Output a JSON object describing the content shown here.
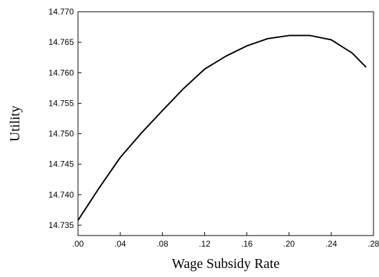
{
  "chart_data": {
    "type": "line",
    "x_label": "Wage Subsidy Rate",
    "y_label": "Utility",
    "x": [
      0,
      0.02,
      0.04,
      0.06,
      0.08,
      0.1,
      0.12,
      0.14,
      0.16,
      0.18,
      0.2,
      0.22,
      0.24,
      0.26,
      0.273
    ],
    "series": [
      {
        "name": "Utility",
        "color": "#000000",
        "values": [
          14.7358,
          14.7411,
          14.7461,
          14.7501,
          14.7538,
          14.7574,
          14.7606,
          14.7627,
          14.7644,
          14.7656,
          14.7661,
          14.7661,
          14.7654,
          14.7632,
          14.7609
        ]
      }
    ],
    "xlim": [
      0,
      0.28
    ],
    "xticks": [
      {
        "value": 0,
        "label": ".00"
      },
      {
        "value": 0.04,
        "label": ".04"
      },
      {
        "value": 0.08,
        "label": ".08"
      },
      {
        "value": 0.12,
        "label": ".12"
      },
      {
        "value": 0.16,
        "label": ".16"
      },
      {
        "value": 0.2,
        "label": ".20"
      },
      {
        "value": 0.24,
        "label": ".24"
      },
      {
        "value": 0.28,
        "label": ".28"
      }
    ],
    "ylim": [
      14.7333,
      14.77
    ],
    "yticks": [
      14.735,
      {
        "value": 14.74,
        "label": "14.740"
      },
      14.745,
      {
        "value": 14.75,
        "label": "14.750"
      },
      14.755,
      {
        "value": 14.76,
        "label": "14.760"
      },
      14.765,
      {
        "value": 14.77,
        "label": "14.770"
      }
    ]
  }
}
